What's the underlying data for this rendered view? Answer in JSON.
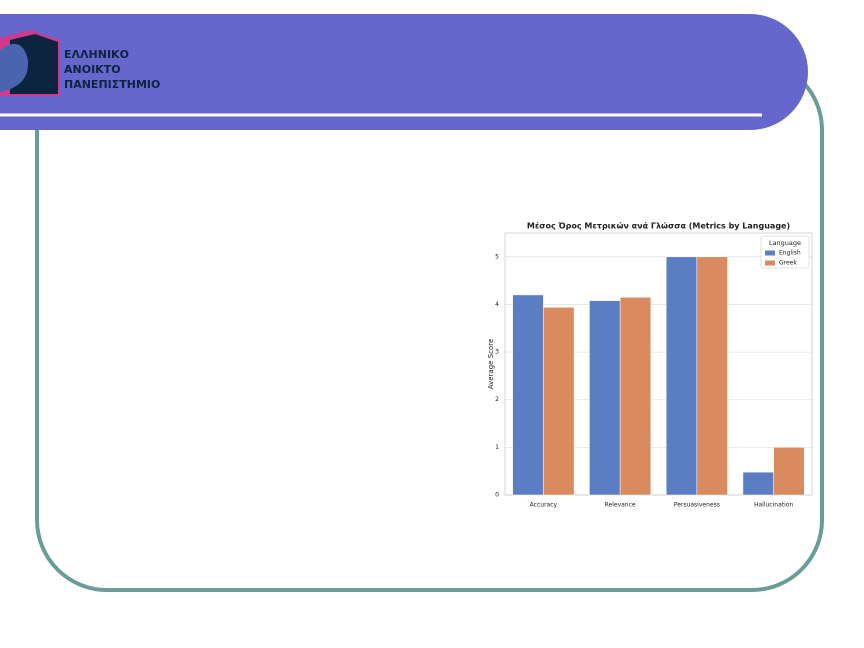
{
  "logo": {
    "lines": [
      "ΕΛΛΗΝΙΚΟ",
      "ΑΝΟΙΚΤΟ",
      "ΠΑΝΕΠΙΣΤΗΜΙΟ"
    ]
  },
  "chart_data": {
    "type": "bar",
    "title": "Μέσος Όρος Μετρικών ανά Γλώσσα (Metrics by Language)",
    "y_label": "Average Score",
    "categories": [
      "Accuracy",
      "Relevance",
      "Persuasiveness",
      "Hallucination"
    ],
    "series": [
      {
        "name": "English",
        "color": "#5b7dc4",
        "values": [
          4.2,
          4.08,
          5.0,
          0.48
        ]
      },
      {
        "name": "Greek",
        "color": "#d98a5e",
        "values": [
          3.94,
          4.15,
          5.0,
          1.0
        ]
      }
    ],
    "ylim": [
      0,
      5.5
    ],
    "yticks": [
      0,
      1,
      2,
      3,
      4,
      5
    ],
    "grid": true,
    "legend_title": "Language",
    "legend": "upper right"
  }
}
